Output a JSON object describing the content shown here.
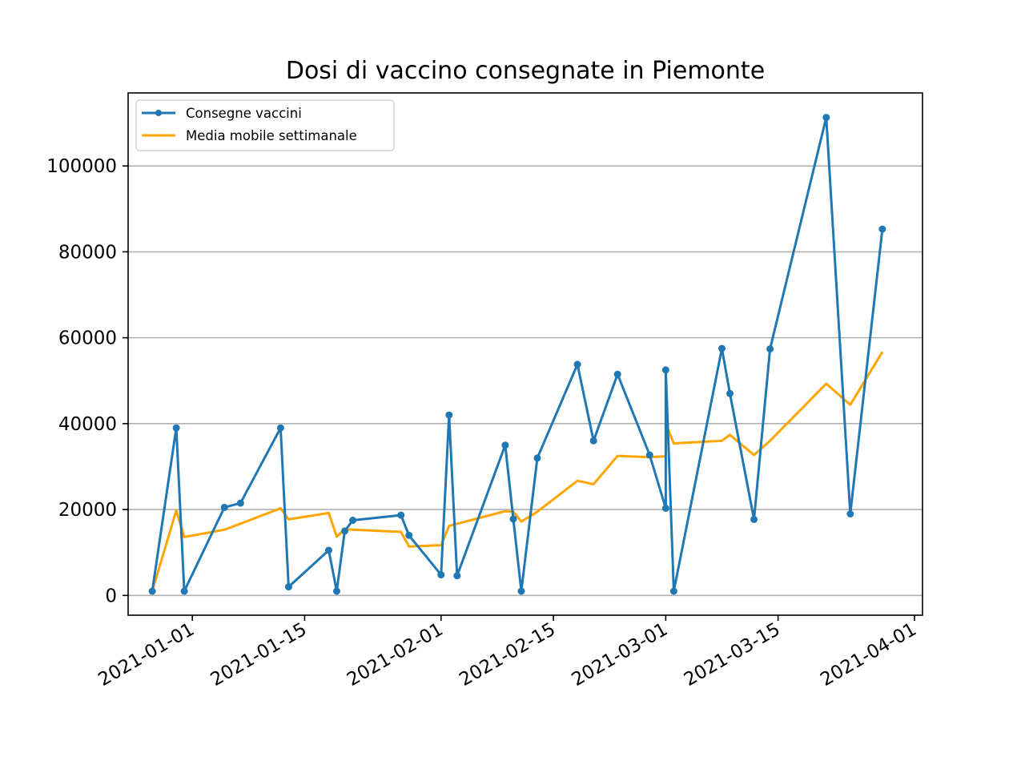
{
  "chart_data": {
    "type": "line",
    "title": "Dosi di vaccino consegnate in Piemonte",
    "xlabel": "",
    "ylabel": "",
    "x_type": "date",
    "xlim": [
      "2020-12-24",
      "2021-04-02"
    ],
    "ylim": [
      -4600,
      117000
    ],
    "x_ticks": [
      "2021-01-01",
      "2021-01-15",
      "2021-02-01",
      "2021-02-15",
      "2021-03-01",
      "2021-03-15",
      "2021-04-01"
    ],
    "y_ticks": [
      0,
      20000,
      40000,
      60000,
      80000,
      100000
    ],
    "grid": {
      "y": true,
      "x": false
    },
    "legend": {
      "position": "top-left"
    },
    "series": [
      {
        "name": "Consegne vaccini",
        "color": "#1f77b4",
        "marker": "dot",
        "points": [
          [
            "2020-12-27",
            1000
          ],
          [
            "2020-12-30",
            39000
          ],
          [
            "2020-12-31",
            1000
          ],
          [
            "2021-01-05",
            20500
          ],
          [
            "2021-01-07",
            21500
          ],
          [
            "2021-01-12",
            39000
          ],
          [
            "2021-01-13",
            2000
          ],
          [
            "2021-01-18",
            10500
          ],
          [
            "2021-01-19",
            1000
          ],
          [
            "2021-01-20",
            15000
          ],
          [
            "2021-01-21",
            17500
          ],
          [
            "2021-01-27",
            18700
          ],
          [
            "2021-01-28",
            14000
          ],
          [
            "2021-02-01",
            4800
          ],
          [
            "2021-02-02",
            42000
          ],
          [
            "2021-02-03",
            4600
          ],
          [
            "2021-02-09",
            35000
          ],
          [
            "2021-02-10",
            17800
          ],
          [
            "2021-02-11",
            1000
          ],
          [
            "2021-02-13",
            32000
          ],
          [
            "2021-02-18",
            53800
          ],
          [
            "2021-02-20",
            36000
          ],
          [
            "2021-02-23",
            51500
          ],
          [
            "2021-02-27",
            32700
          ],
          [
            "2021-02-29",
            20300
          ],
          [
            "2021-03-01",
            52500
          ],
          [
            "2021-03-02",
            1000
          ],
          [
            "2021-03-08",
            57500
          ],
          [
            "2021-03-09",
            47000
          ],
          [
            "2021-03-12",
            17700
          ],
          [
            "2021-03-14",
            57400
          ],
          [
            "2021-03-21",
            111300
          ],
          [
            "2021-03-24",
            19000
          ],
          [
            "2021-03-28",
            85300
          ]
        ]
      },
      {
        "name": "Media mobile settimanale",
        "color": "#ffa500",
        "marker": "none",
        "points": [
          [
            "2020-12-27",
            1000
          ],
          [
            "2020-12-30",
            19800
          ],
          [
            "2020-12-31",
            13600
          ],
          [
            "2021-01-05",
            15300
          ],
          [
            "2021-01-07",
            16700
          ],
          [
            "2021-01-12",
            20300
          ],
          [
            "2021-01-13",
            17700
          ],
          [
            "2021-01-18",
            19200
          ],
          [
            "2021-01-19",
            13700
          ],
          [
            "2021-01-20",
            15400
          ],
          [
            "2021-01-21",
            15300
          ],
          [
            "2021-01-27",
            14800
          ],
          [
            "2021-01-28",
            11400
          ],
          [
            "2021-02-01",
            11700
          ],
          [
            "2021-02-02",
            16200
          ],
          [
            "2021-02-03",
            16700
          ],
          [
            "2021-02-09",
            19600
          ],
          [
            "2021-02-10",
            19500
          ],
          [
            "2021-02-11",
            17200
          ],
          [
            "2021-02-13",
            19500
          ],
          [
            "2021-02-18",
            26700
          ],
          [
            "2021-02-20",
            25900
          ],
          [
            "2021-02-23",
            32500
          ],
          [
            "2021-02-27",
            32200
          ],
          [
            "2021-02-29",
            32400
          ],
          [
            "2021-03-01",
            40000
          ],
          [
            "2021-03-02",
            35400
          ],
          [
            "2021-03-08",
            36000
          ],
          [
            "2021-03-09",
            37400
          ],
          [
            "2021-03-12",
            32700
          ],
          [
            "2021-03-14",
            36000
          ],
          [
            "2021-03-21",
            49300
          ],
          [
            "2021-03-24",
            44400
          ],
          [
            "2021-03-28",
            56700
          ]
        ]
      }
    ]
  }
}
